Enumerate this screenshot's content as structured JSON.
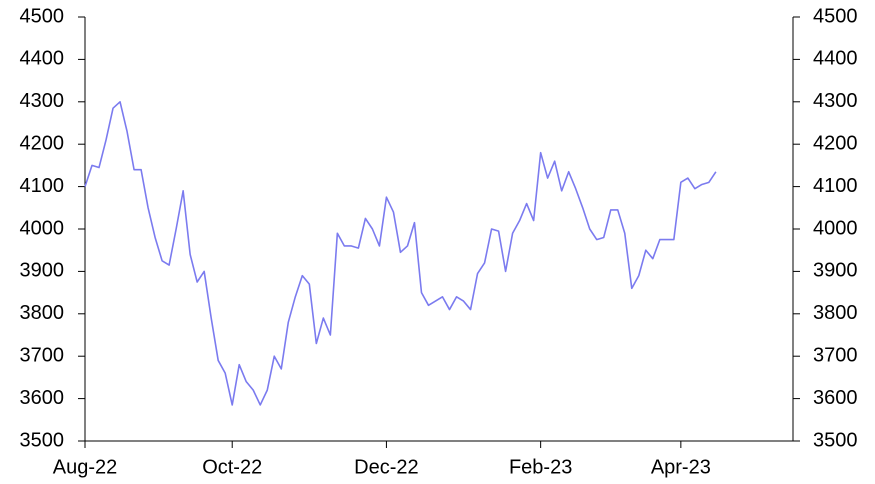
{
  "chart_data": {
    "type": "line",
    "categories": [
      "Aug-22",
      null,
      null,
      null,
      null,
      null,
      null,
      null,
      null,
      null,
      null,
      null,
      null,
      null,
      null,
      null,
      null,
      null,
      null,
      null,
      null,
      "Oct-22",
      null,
      null,
      null,
      null,
      null,
      null,
      null,
      null,
      null,
      null,
      null,
      null,
      null,
      null,
      null,
      null,
      null,
      null,
      null,
      null,
      null,
      "Dec-22",
      null,
      null,
      null,
      null,
      null,
      null,
      null,
      null,
      null,
      null,
      null,
      null,
      null,
      null,
      null,
      null,
      null,
      null,
      null,
      null,
      null,
      "Feb-23",
      null,
      null,
      null,
      null,
      null,
      null,
      null,
      null,
      null,
      null,
      null,
      null,
      null,
      null,
      null,
      null,
      null,
      null,
      null,
      "Apr-23",
      null,
      null,
      null,
      null,
      null,
      null,
      null,
      null,
      null,
      null,
      null,
      null,
      null,
      null,
      null,
      null
    ],
    "series": [
      {
        "color": "#7b7bef",
        "values": [
          4100,
          4150,
          4145,
          4210,
          4285,
          4300,
          4230,
          4140,
          4140,
          4050,
          3980,
          3925,
          3915,
          4000,
          4090,
          3940,
          3875,
          3900,
          3790,
          3690,
          3660,
          3585,
          3680,
          3640,
          3620,
          3585,
          3620,
          3700,
          3670,
          3780,
          3840,
          3890,
          3870,
          3730,
          3790,
          3750,
          3990,
          3960,
          3960,
          3955,
          4025,
          4000,
          3960,
          4075,
          4040,
          3945,
          3960,
          4015,
          3850,
          3820,
          3830,
          3840,
          3810,
          3840,
          3830,
          3810,
          3895,
          3920,
          4000,
          3995,
          3900,
          3990,
          4020,
          4060,
          4020,
          4180,
          4120,
          4160,
          4090,
          4135,
          4095,
          4050,
          4000,
          3975,
          3980,
          4045,
          4045,
          3990,
          3860,
          3890,
          3950,
          3930,
          3975,
          3975,
          3975,
          4110,
          4120,
          4095,
          4105,
          4110,
          4135,
          null,
          null,
          null,
          null,
          null,
          null,
          null,
          null,
          null,
          null,
          null
        ]
      }
    ],
    "ylim": [
      3500,
      4500
    ],
    "yticks": [
      3500,
      3600,
      3700,
      3800,
      3900,
      4000,
      4100,
      4200,
      4300,
      4400,
      4500
    ],
    "y2lim": [
      3500,
      4500
    ],
    "y2ticks": [
      3500,
      3600,
      3700,
      3800,
      3900,
      4000,
      4100,
      4200,
      4300,
      4400,
      4500
    ]
  }
}
